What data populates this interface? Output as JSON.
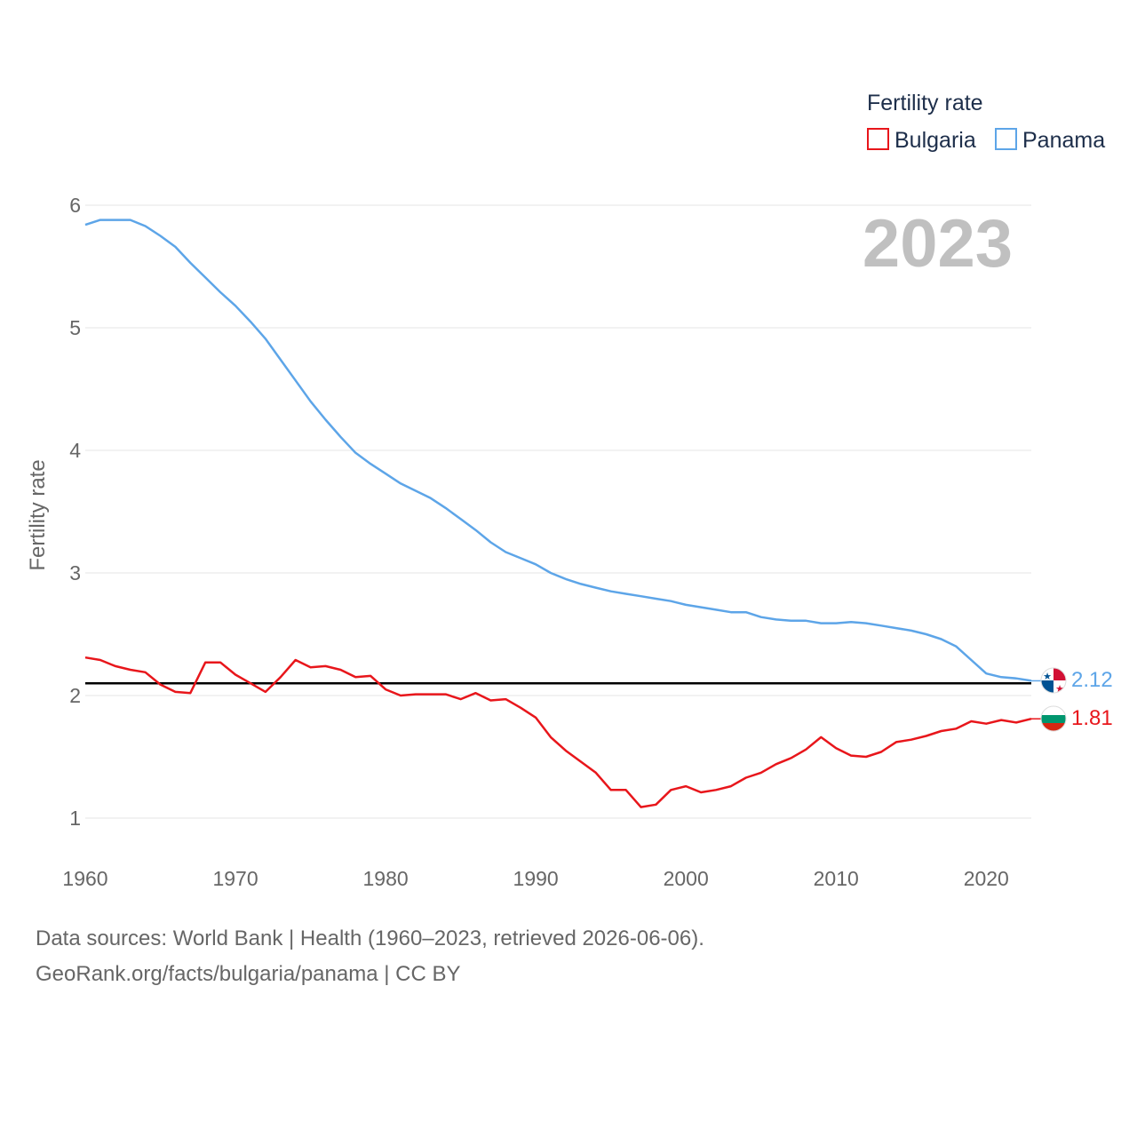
{
  "chart_data": {
    "type": "line",
    "ylabel": "Fertility rate",
    "legend_title": "Fertility rate",
    "legend_position": "top-right",
    "current_year": "2023",
    "x_ticks": [
      1960,
      1970,
      1980,
      1990,
      2000,
      2010,
      2020
    ],
    "y_ticks": [
      1,
      2,
      3,
      4,
      5,
      6
    ],
    "xlim": [
      1960,
      2023
    ],
    "ylim": [
      0.9,
      6.1
    ],
    "grid": true,
    "reference_line": 2.1,
    "years": [
      1960,
      1961,
      1962,
      1963,
      1964,
      1965,
      1966,
      1967,
      1968,
      1969,
      1970,
      1971,
      1972,
      1973,
      1974,
      1975,
      1976,
      1977,
      1978,
      1979,
      1980,
      1981,
      1982,
      1983,
      1984,
      1985,
      1986,
      1987,
      1988,
      1989,
      1990,
      1991,
      1992,
      1993,
      1994,
      1995,
      1996,
      1997,
      1998,
      1999,
      2000,
      2001,
      2002,
      2003,
      2004,
      2005,
      2006,
      2007,
      2008,
      2009,
      2010,
      2011,
      2012,
      2013,
      2014,
      2015,
      2016,
      2017,
      2018,
      2019,
      2020,
      2021,
      2022,
      2023
    ],
    "series": [
      {
        "name": "Bulgaria",
        "color": "#e8161b",
        "end_label": "1.81",
        "values": [
          2.31,
          2.29,
          2.24,
          2.21,
          2.19,
          2.09,
          2.03,
          2.02,
          2.27,
          2.27,
          2.17,
          2.1,
          2.03,
          2.15,
          2.29,
          2.23,
          2.24,
          2.21,
          2.15,
          2.16,
          2.05,
          2.0,
          2.01,
          2.01,
          2.01,
          1.97,
          2.02,
          1.96,
          1.97,
          1.9,
          1.82,
          1.66,
          1.55,
          1.46,
          1.37,
          1.23,
          1.23,
          1.09,
          1.11,
          1.23,
          1.26,
          1.21,
          1.23,
          1.26,
          1.33,
          1.37,
          1.44,
          1.49,
          1.56,
          1.66,
          1.57,
          1.51,
          1.5,
          1.54,
          1.62,
          1.64,
          1.67,
          1.71,
          1.73,
          1.79,
          1.77,
          1.8,
          1.78,
          1.81
        ]
      },
      {
        "name": "Panama",
        "color": "#5da5e8",
        "end_label": "2.12",
        "values": [
          5.84,
          5.88,
          5.88,
          5.88,
          5.83,
          5.75,
          5.66,
          5.53,
          5.41,
          5.29,
          5.18,
          5.05,
          4.91,
          4.74,
          4.57,
          4.4,
          4.25,
          4.11,
          3.98,
          3.89,
          3.81,
          3.73,
          3.67,
          3.61,
          3.53,
          3.44,
          3.35,
          3.25,
          3.17,
          3.12,
          3.07,
          3.0,
          2.95,
          2.91,
          2.88,
          2.85,
          2.83,
          2.81,
          2.79,
          2.77,
          2.74,
          2.72,
          2.7,
          2.68,
          2.68,
          2.64,
          2.62,
          2.61,
          2.61,
          2.59,
          2.59,
          2.6,
          2.59,
          2.57,
          2.55,
          2.53,
          2.5,
          2.46,
          2.4,
          2.29,
          2.18,
          2.15,
          2.14,
          2.12
        ]
      }
    ]
  },
  "footer": {
    "source": "Data sources: World Bank | Health (1960–2023, retrieved 2026-06-06).",
    "credit": "GeoRank.org/facts/bulgaria/panama | CC BY"
  }
}
